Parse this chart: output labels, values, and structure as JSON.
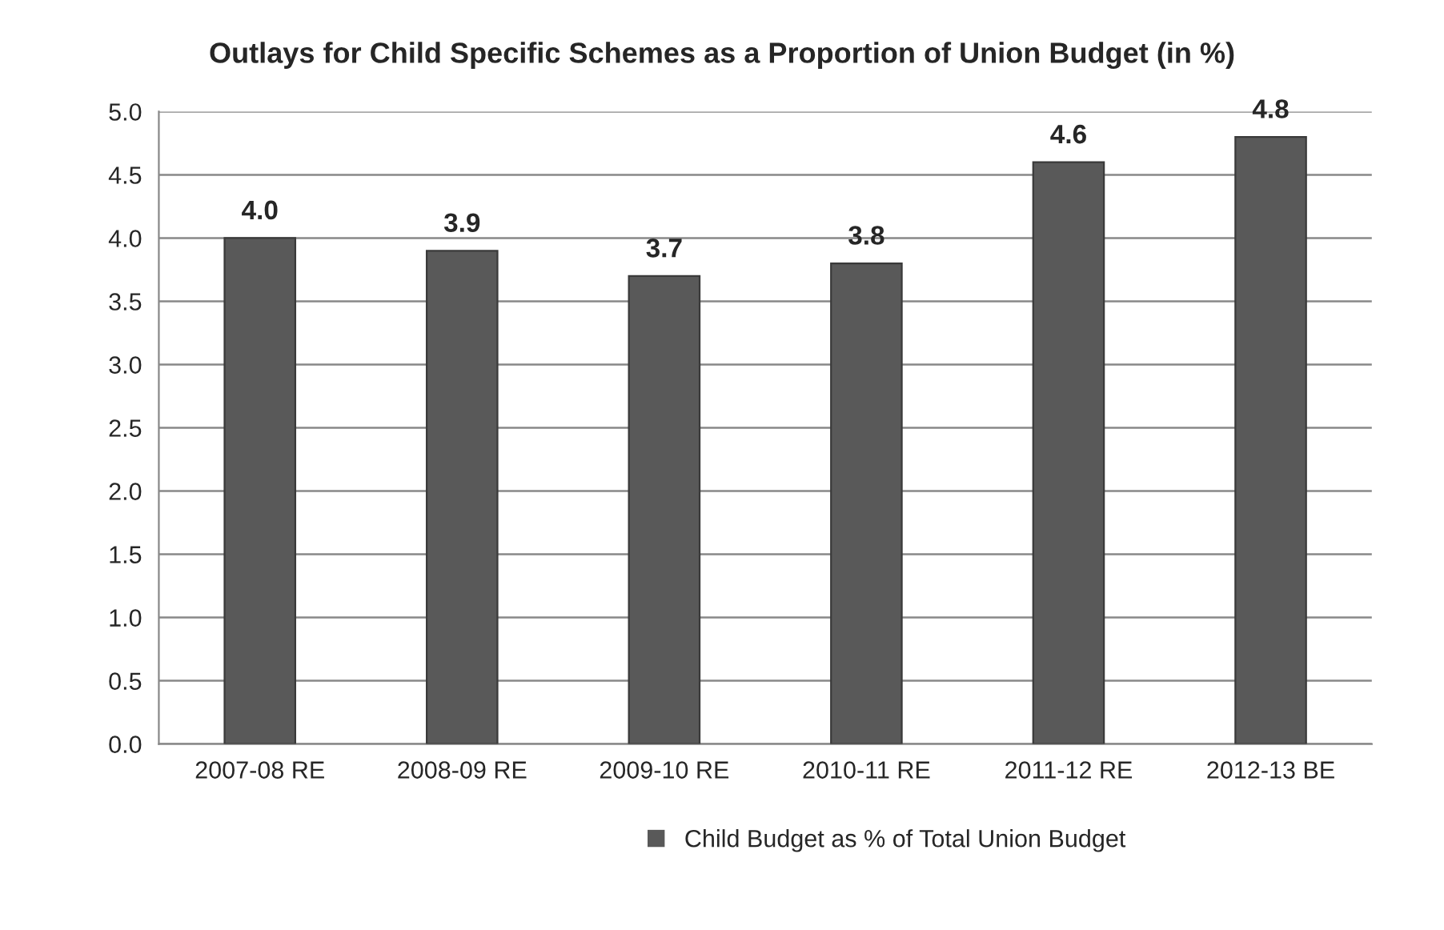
{
  "chart_data": {
    "type": "bar",
    "title": "Outlays for Child Specific Schemes as a Proportion of Union Budget (in %)",
    "categories": [
      "2007-08 RE",
      "2008-09 RE",
      "2009-10 RE",
      "2010-11 RE",
      "2011-12 RE",
      "2012-13 BE"
    ],
    "series": [
      {
        "name": "Child Budget as % of Total Union Budget",
        "color": "#595959",
        "values": [
          4.0,
          3.9,
          3.7,
          3.8,
          4.6,
          4.8
        ],
        "value_labels": [
          "4.0",
          "3.9",
          "3.7",
          "3.8",
          "4.6",
          "4.8"
        ]
      }
    ],
    "ylim": [
      0,
      5
    ],
    "yticks": [
      {
        "value": 0,
        "label": "0.0"
      },
      {
        "value": 0.5,
        "label": "0.5"
      },
      {
        "value": 1,
        "label": "1.0"
      },
      {
        "value": 1.5,
        "label": "1.5"
      },
      {
        "value": 2,
        "label": "2.0"
      },
      {
        "value": 2.5,
        "label": "2.5"
      },
      {
        "value": 3,
        "label": "3.0"
      },
      {
        "value": 3.5,
        "label": "3.5"
      },
      {
        "value": 4,
        "label": "4.0"
      },
      {
        "value": 4.5,
        "label": "4.5"
      },
      {
        "value": 5,
        "label": "5.0"
      }
    ],
    "grid": "y",
    "legend": "bottom"
  }
}
